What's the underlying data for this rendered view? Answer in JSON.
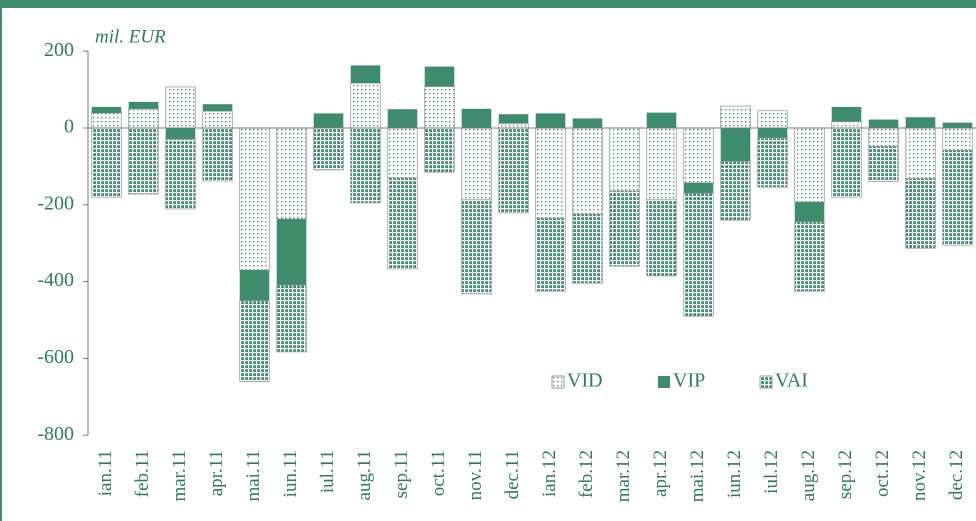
{
  "chart_data": {
    "type": "bar",
    "stacked": true,
    "y_axis_label": "mil. EUR",
    "categories": [
      "ian.11",
      "feb.11",
      "mar.11",
      "apr.11",
      "mai.11",
      "iun.11",
      "iul.11",
      "aug.11",
      "sep.11",
      "oct.11",
      "nov.11",
      "dec.11",
      "ian.12",
      "feb.12",
      "mar.12",
      "apr.12",
      "mai.12",
      "iun.12",
      "iul.12",
      "aug.12",
      "sep.12",
      "oct.12",
      "nov.12",
      "dec.12"
    ],
    "series": [
      {
        "name": "VID",
        "color": "#3e8c6c",
        "pattern": "dots",
        "values": [
          39,
          50,
          107,
          44,
          -370,
          -237,
          0,
          117,
          -130,
          108,
          -187,
          12,
          -235,
          -224,
          -164,
          -187,
          -143,
          57,
          45,
          -193,
          17,
          -48,
          -132,
          -58
        ]
      },
      {
        "name": "VIP",
        "color": "#3e8c6c",
        "pattern": "solid",
        "values": [
          16,
          18,
          -29,
          18,
          -80,
          -172,
          38,
          46,
          49,
          52,
          50,
          24,
          38,
          25,
          0,
          40,
          -27,
          -87,
          -26,
          -52,
          38,
          22,
          28,
          14
        ]
      },
      {
        "name": "VAI",
        "color": "#3e8c6c",
        "pattern": "grid",
        "values": [
          -180,
          -172,
          -182,
          -138,
          -210,
          -174,
          -109,
          -195,
          -237,
          -115,
          -245,
          -221,
          -190,
          -180,
          -196,
          -198,
          -320,
          -153,
          -128,
          -180,
          -180,
          -91,
          -181,
          -247
        ]
      }
    ],
    "ylim": [
      -800,
      200
    ],
    "yticks": [
      -800,
      -600,
      -400,
      -200,
      0,
      200
    ],
    "legend": "lower right"
  }
}
